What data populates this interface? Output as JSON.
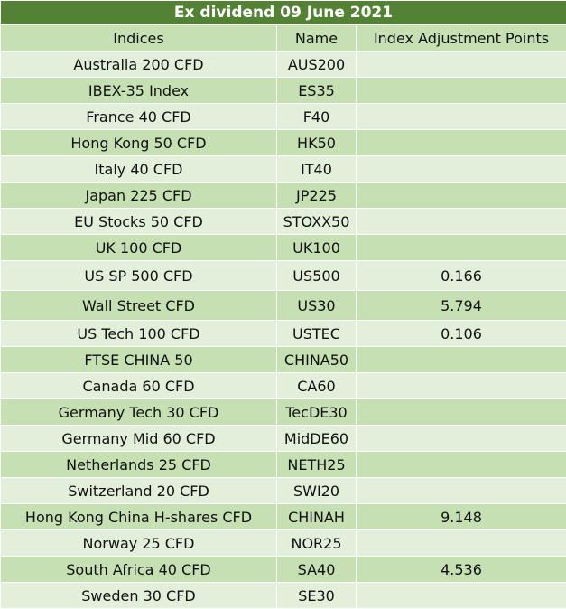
{
  "title": "Ex dividend 09 June 2021",
  "columns": [
    "Indices",
    "Name",
    "Index Adjustment Points"
  ],
  "rows": [
    {
      "index": "Australia 200 CFD",
      "name": "AUS200",
      "points": ""
    },
    {
      "index": "IBEX-35 Index",
      "name": "ES35",
      "points": ""
    },
    {
      "index": "France 40 CFD",
      "name": "F40",
      "points": ""
    },
    {
      "index": "Hong Kong 50 CFD",
      "name": "HK50",
      "points": ""
    },
    {
      "index": "Italy 40 CFD",
      "name": "IT40",
      "points": ""
    },
    {
      "index": "Japan 225 CFD",
      "name": "JP225",
      "points": ""
    },
    {
      "index": "EU Stocks 50 CFD",
      "name": "STOXX50",
      "points": ""
    },
    {
      "index": "UK 100 CFD",
      "name": "UK100",
      "points": ""
    },
    {
      "index": "US SP 500 CFD",
      "name": "US500",
      "points": "0.166"
    },
    {
      "index": "Wall Street CFD",
      "name": "US30",
      "points": "5.794"
    },
    {
      "index": "US Tech 100 CFD",
      "name": "USTEC",
      "points": "0.106"
    },
    {
      "index": "FTSE CHINA 50",
      "name": "CHINA50",
      "points": ""
    },
    {
      "index": "Canada 60 CFD",
      "name": "CA60",
      "points": ""
    },
    {
      "index": "Germany Tech 30 CFD",
      "name": "TecDE30",
      "points": ""
    },
    {
      "index": "Germany Mid 60 CFD",
      "name": "MidDE60",
      "points": ""
    },
    {
      "index": "Netherlands 25 CFD",
      "name": "NETH25",
      "points": ""
    },
    {
      "index": "Switzerland 20 CFD",
      "name": "SWI20",
      "points": ""
    },
    {
      "index": "Hong Kong China H-shares CFD",
      "name": "CHINAH",
      "points": "9.148"
    },
    {
      "index": "Norway 25 CFD",
      "name": "NOR25",
      "points": ""
    },
    {
      "index": "South Africa 40 CFD",
      "name": "SA40",
      "points": "4.536"
    },
    {
      "index": "Sweden 30 CFD",
      "name": "SE30",
      "points": ""
    }
  ],
  "colors": {
    "title_bg": "#548235",
    "header_bg": "#c6e0b4",
    "row_light": "#e2efda",
    "row_dark": "#c6e0b4"
  }
}
